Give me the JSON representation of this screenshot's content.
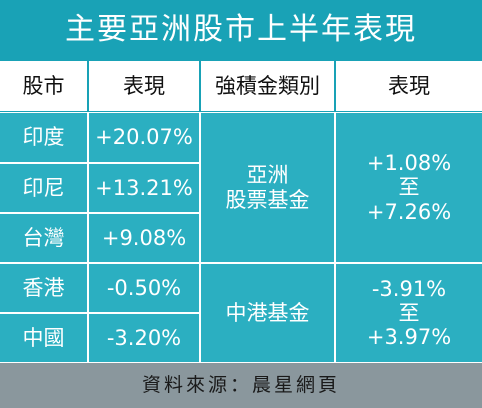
{
  "title": "主要亞洲股市上半年表現",
  "header": [
    "股市",
    "表現",
    "強積金類別",
    "表現"
  ],
  "rows": [
    [
      "印度",
      "+20.07%"
    ],
    [
      "印尼",
      "+13.21%"
    ],
    [
      "台灣",
      "+9.08%"
    ],
    [
      "香港",
      "-0.50%"
    ],
    [
      "中國",
      "-3.20%"
    ]
  ],
  "funds": [
    {
      "name": [
        "亞洲",
        "股票基金"
      ],
      "range": [
        "+1.08%",
        "至",
        "+7.26%"
      ]
    },
    {
      "name": [
        "中港基金"
      ],
      "range": [
        "-3.91%",
        "至",
        "+3.97%"
      ]
    }
  ],
  "source": "資料來源：晨星網頁"
}
